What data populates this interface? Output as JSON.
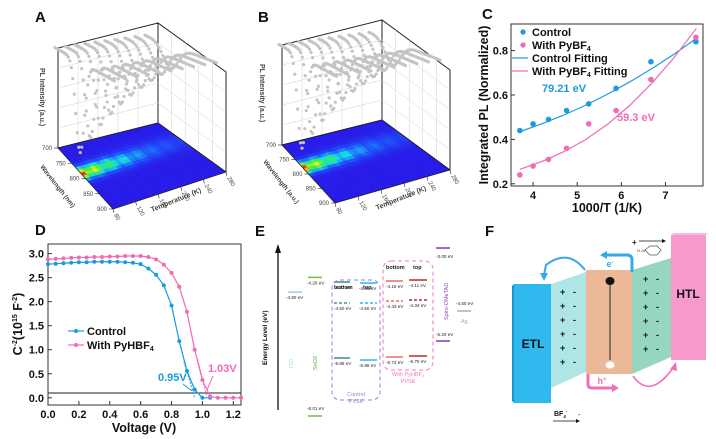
{
  "panels": {
    "A": {
      "label": "A"
    },
    "B": {
      "label": "B"
    },
    "C": {
      "label": "C"
    },
    "D": {
      "label": "D"
    },
    "E": {
      "label": "E"
    },
    "F": {
      "label": "F"
    }
  },
  "chart_data": [
    {
      "id": "A",
      "type": "heatmap",
      "title": "",
      "zlabel": "PL Intensity (a.u.)",
      "ylabel": "Wavelength (nm)",
      "xlabel": "Temperature (K)",
      "y_ticks": [
        "700",
        "750",
        "800",
        "850",
        "900"
      ],
      "x_ticks": [
        "80",
        "120",
        "160",
        "200",
        "240",
        "280"
      ],
      "ylim": [
        700,
        900
      ],
      "xlim": [
        80,
        280
      ],
      "peak_wavelength_nm": 785,
      "note": "3D waterfall of PL spectra (grey) with projected color contour map (blue-green-yellow-red)"
    },
    {
      "id": "B",
      "type": "heatmap",
      "title": "",
      "zlabel": "PL Intensity (a.u.)",
      "ylabel": "Wavelength (a.u.)",
      "xlabel": "Temperature (K)",
      "y_ticks": [
        "700",
        "750",
        "800",
        "850",
        "900"
      ],
      "x_ticks": [
        "80",
        "120",
        "160",
        "200",
        "240",
        "280"
      ],
      "ylim": [
        700,
        900
      ],
      "xlim": [
        80,
        280
      ],
      "peak_wavelength_nm": 780,
      "note": "3D waterfall of PL spectra (grey) with projected color contour map"
    },
    {
      "id": "C",
      "type": "scatter",
      "title": "",
      "xlabel": "1000/T (1/K)",
      "ylabel": "Integrated PL (Normalized)",
      "xlim": [
        3.5,
        7.85
      ],
      "ylim": [
        0.19,
        0.92
      ],
      "x_ticks": [
        "4",
        "5",
        "6",
        "7"
      ],
      "y_ticks": [
        "0.2",
        "0.4",
        "0.6",
        "0.8"
      ],
      "legend_position": "top-left",
      "series": [
        {
          "name": "Control",
          "kind": "points",
          "color": "#1a9be0",
          "x": [
            3.7,
            4.0,
            4.35,
            4.76,
            5.26,
            5.88,
            6.67,
            7.69
          ],
          "y": [
            0.44,
            0.47,
            0.49,
            0.53,
            0.56,
            0.63,
            0.75,
            0.84
          ]
        },
        {
          "name": "With PyBF4",
          "kind": "points",
          "color": "#f06bb4",
          "x": [
            3.7,
            4.0,
            4.35,
            4.76,
            5.26,
            5.88,
            6.67,
            7.69
          ],
          "y": [
            0.24,
            0.28,
            0.31,
            0.36,
            0.47,
            0.53,
            0.67,
            0.86
          ]
        },
        {
          "name": "Control Fitting",
          "kind": "line",
          "color": "#1a9be0",
          "x": [
            3.7,
            4.2,
            4.7,
            5.2,
            5.7,
            6.2,
            6.7,
            7.2,
            7.7
          ],
          "y": [
            0.435,
            0.47,
            0.51,
            0.555,
            0.605,
            0.66,
            0.72,
            0.785,
            0.855
          ]
        },
        {
          "name": "With PyBF4 Fitting",
          "kind": "line",
          "color": "#f06bb4",
          "x": [
            3.7,
            4.2,
            4.7,
            5.2,
            5.7,
            6.2,
            6.7,
            7.2,
            7.7
          ],
          "y": [
            0.265,
            0.3,
            0.345,
            0.4,
            0.47,
            0.555,
            0.655,
            0.77,
            0.9
          ]
        }
      ],
      "legend": [
        "Control",
        "With PyBF4",
        "Control Fitting",
        "With PyBF4 Fitting"
      ],
      "annotations": [
        {
          "text": "79.21 eV",
          "color": "#1a9be0",
          "x": 4.9,
          "y": 0.65
        },
        {
          "text": "59.3 eV",
          "color": "#f06bb4",
          "x": 6.45,
          "y": 0.48
        }
      ]
    },
    {
      "id": "D",
      "type": "line",
      "title": "",
      "xlabel": "Voltage (V)",
      "ylabel": "C-2(1015 F-2)",
      "xlim": [
        0,
        1.25
      ],
      "ylim": [
        -0.15,
        3.2
      ],
      "x_ticks": [
        "0.0",
        "0.2",
        "0.4",
        "0.6",
        "0.8",
        "1.0",
        "1.2"
      ],
      "y_ticks": [
        "0.0",
        "0.5",
        "1.0",
        "1.5",
        "2.0",
        "2.5",
        "3.0"
      ],
      "legend_position": "center-left",
      "series": [
        {
          "name": "Control",
          "color": "#1a9be0",
          "x": [
            0.0,
            0.05,
            0.1,
            0.15,
            0.2,
            0.25,
            0.3,
            0.35,
            0.4,
            0.45,
            0.5,
            0.55,
            0.6,
            0.65,
            0.7,
            0.75,
            0.8,
            0.85,
            0.9,
            0.95,
            1.0,
            1.05
          ],
          "y": [
            2.78,
            2.79,
            2.8,
            2.81,
            2.82,
            2.82,
            2.83,
            2.83,
            2.83,
            2.83,
            2.82,
            2.81,
            2.78,
            2.69,
            2.56,
            2.34,
            1.92,
            1.18,
            0.56,
            0.17,
            0.0,
            0.0
          ]
        },
        {
          "name": "With PyHBF4",
          "color": "#f06bb4",
          "x": [
            0.0,
            0.05,
            0.1,
            0.15,
            0.2,
            0.25,
            0.3,
            0.35,
            0.4,
            0.45,
            0.5,
            0.55,
            0.6,
            0.65,
            0.7,
            0.75,
            0.8,
            0.85,
            0.9,
            0.95,
            1.0,
            1.05,
            1.1,
            1.15,
            1.2,
            1.25
          ],
          "y": [
            2.88,
            2.89,
            2.9,
            2.91,
            2.92,
            2.92,
            2.93,
            2.93,
            2.94,
            2.94,
            2.95,
            2.95,
            2.95,
            2.93,
            2.88,
            2.77,
            2.6,
            2.31,
            1.79,
            1.0,
            0.37,
            0.03,
            0.0,
            0.0,
            0.0,
            0.0
          ]
        }
      ],
      "legend": [
        "Control",
        "With PyHBF4"
      ],
      "annotations": [
        {
          "text": "0.95V",
          "color": "#1a9be0"
        },
        {
          "text": "1.03V",
          "color": "#f06bb4"
        }
      ]
    }
  ],
  "energy_diagram": {
    "axis_label": "Energy Level (eV)",
    "layers": [
      {
        "name": "ITO",
        "color": "#9ad5e8",
        "levels": [
          {
            "value": "-4.80 eV",
            "ev": -4.8
          }
        ]
      },
      {
        "name": "SnO2",
        "color": "#7cc242",
        "levels": [
          {
            "value": "-4.20 eV",
            "ev": -4.2
          },
          {
            "value": "-8.01 eV",
            "ev": -8.01
          }
        ]
      },
      {
        "name": "Control PVSK",
        "color": "#8888dd",
        "bottom": [
          {
            "value": "-4.27 eV",
            "ev": -4.27,
            "style": "solid"
          },
          {
            "value": "-4.50 eV",
            "ev": -4.5,
            "style": "dashed"
          },
          {
            "value": "-5.86 eV",
            "ev": -5.86,
            "style": "solid"
          }
        ],
        "top": [
          {
            "value": "-4.29 eV",
            "ev": -4.29,
            "style": "solid"
          },
          {
            "value": "-4.50 eV",
            "ev": -4.5,
            "style": "dashed"
          },
          {
            "value": "-5.88 eV",
            "ev": -5.88,
            "style": "solid"
          }
        ],
        "label_line1": "Control",
        "label_line2": "PVSK"
      },
      {
        "name": "With PyHBF4 PVSK",
        "color": "#f07bbd",
        "bottom": [
          {
            "value": "-4.15 eV",
            "ev": -4.15,
            "style": "solid"
          },
          {
            "value": "-4.43 eV",
            "ev": -4.43,
            "style": "dashed"
          },
          {
            "value": "-5.74 eV",
            "ev": -5.74,
            "style": "solid"
          }
        ],
        "top": [
          {
            "value": "-4.11 eV",
            "ev": -4.11,
            "style": "solid"
          },
          {
            "value": "-4.34 eV",
            "ev": -4.34,
            "style": "dashed"
          },
          {
            "value": "-5.70 eV",
            "ev": -5.7,
            "style": "solid"
          }
        ],
        "label_line1": "With PyHBF4",
        "label_line2": "PVSK"
      },
      {
        "name": "Spiro-OMeTAD",
        "color": "#8e44c0",
        "levels": [
          {
            "value": "-3.00 eV",
            "ev": -3.0
          },
          {
            "value": "-5.20 eV",
            "ev": -5.2
          }
        ]
      },
      {
        "name": "Ag",
        "color": "#aaaaaa",
        "levels": [
          {
            "value": "-4.50 eV",
            "ev": -4.5
          }
        ]
      }
    ],
    "col_bottom": "bottom",
    "col_top": "top"
  },
  "schematic": {
    "etl": "ETL",
    "htl": "HTL",
    "electron": "e-",
    "hole": "h+",
    "anion": "BF4-",
    "charges": "+ -",
    "colors": {
      "etl": "#2fb9ee",
      "etl_interface": "#aee6e6",
      "perovskite": "#ebb898",
      "htl_interface": "#96d6bf",
      "htl": "#f79acb",
      "electron_arrow": "#35a9e8",
      "hole_arrow": "#ef6fb8"
    }
  }
}
